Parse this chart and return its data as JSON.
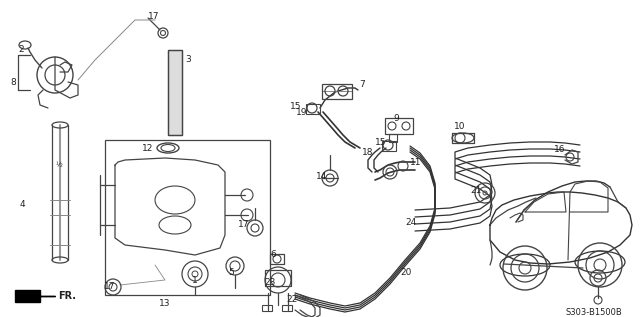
{
  "bg_color": "#ffffff",
  "diagram_code": "S303-B1500B",
  "figsize": [
    6.4,
    3.17
  ],
  "dpi": 100
}
